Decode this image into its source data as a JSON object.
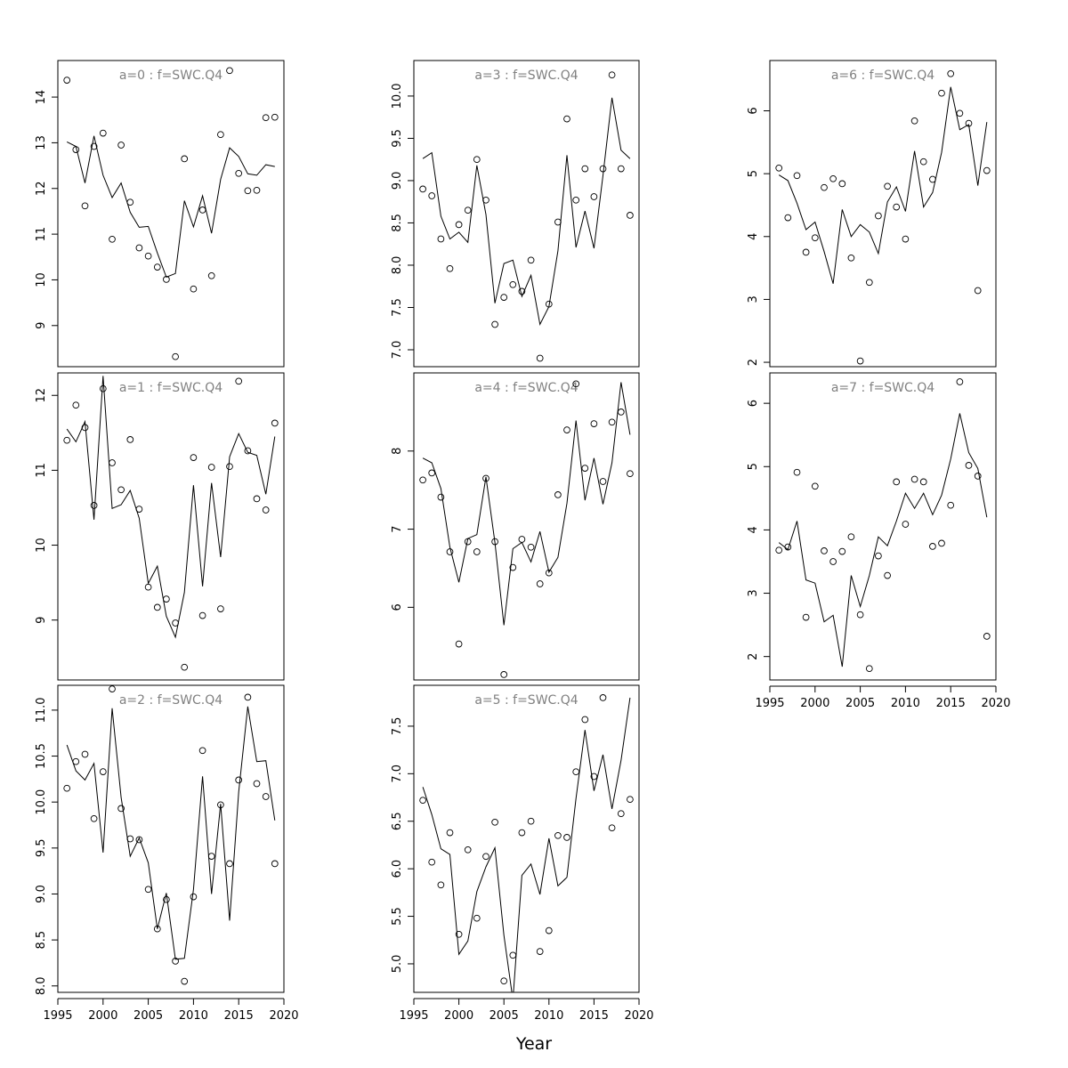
{
  "chart_data": {
    "type": "line",
    "xlabel": "Year",
    "x": [
      1996,
      1997,
      1998,
      1999,
      2000,
      2001,
      2002,
      2003,
      2004,
      2005,
      2006,
      2007,
      2008,
      2009,
      2010,
      2011,
      2012,
      2013,
      2014,
      2015,
      2016,
      2017,
      2018,
      2019
    ],
    "xlim": [
      1995,
      2020
    ],
    "xticks": [
      1995,
      2000,
      2005,
      2010,
      2015,
      2020
    ],
    "panels": [
      {
        "title": "a=0  :  f=SWC.Q4",
        "ylim": [
          8.1,
          14.8
        ],
        "yticks": [
          9,
          10,
          11,
          12,
          13,
          14
        ],
        "fitted": [
          13.02,
          12.92,
          12.12,
          13.15,
          12.29,
          11.8,
          12.12,
          11.48,
          11.15,
          11.17,
          10.59,
          10.06,
          10.14,
          11.73,
          11.16,
          11.84,
          11.02,
          12.2,
          12.89,
          12.7,
          12.32,
          12.29,
          12.52,
          12.48
        ],
        "observed": [
          14.37,
          12.85,
          11.62,
          12.92,
          13.21,
          10.89,
          12.95,
          11.7,
          10.7,
          10.52,
          10.28,
          10.01,
          8.32,
          12.65,
          9.8,
          11.53,
          10.09,
          13.18,
          14.58,
          12.33,
          11.95,
          11.96,
          13.55,
          13.56
        ]
      },
      {
        "title": "a=1  :  f=SWC.Q4",
        "ylim": [
          8.2,
          12.3
        ],
        "yticks": [
          9,
          10,
          11,
          12
        ],
        "fitted": [
          11.55,
          11.38,
          11.65,
          10.34,
          12.26,
          10.49,
          10.54,
          10.73,
          10.36,
          9.49,
          9.72,
          9.05,
          8.77,
          9.37,
          10.8,
          9.45,
          10.83,
          9.84,
          11.18,
          11.49,
          11.24,
          11.2,
          10.68,
          11.45
        ],
        "observed": [
          11.4,
          11.87,
          11.57,
          10.53,
          12.09,
          11.1,
          10.74,
          11.41,
          10.48,
          9.44,
          9.17,
          9.28,
          8.96,
          8.37,
          11.17,
          9.06,
          11.04,
          9.15,
          11.05,
          12.19,
          11.26,
          10.62,
          10.47,
          11.63
        ]
      },
      {
        "title": "a=2  :  f=SWC.Q4",
        "ylim": [
          7.93,
          11.27
        ],
        "yticks": [
          "8.0",
          "8.5",
          "9.0",
          "9.5",
          "10.0",
          "10.5",
          "11.0"
        ],
        "fitted": [
          10.62,
          10.34,
          10.24,
          10.42,
          9.45,
          11.02,
          10.05,
          9.41,
          9.61,
          9.34,
          8.62,
          9.01,
          8.29,
          8.3,
          9.05,
          10.28,
          9.0,
          9.98,
          8.71,
          10.11,
          11.04,
          10.44,
          10.45,
          9.8
        ],
        "observed": [
          10.15,
          10.44,
          10.52,
          9.82,
          10.33,
          11.23,
          9.93,
          9.6,
          9.59,
          9.05,
          8.62,
          8.94,
          8.27,
          8.05,
          8.97,
          10.56,
          9.41,
          9.97,
          9.33,
          10.24,
          11.14,
          10.2,
          10.06,
          9.33
        ]
      },
      {
        "title": "a=3  :  f=SWC.Q4",
        "ylim": [
          6.8,
          10.42
        ],
        "yticks": [
          "7.0",
          "7.5",
          "8.0",
          "8.5",
          "9.0",
          "9.5",
          "10.0"
        ],
        "fitted": [
          9.26,
          9.33,
          8.58,
          8.31,
          8.39,
          8.27,
          9.18,
          8.6,
          7.55,
          8.02,
          8.06,
          7.63,
          7.88,
          7.3,
          7.51,
          8.17,
          9.3,
          8.21,
          8.64,
          8.2,
          9.06,
          9.98,
          9.36,
          9.26
        ],
        "observed": [
          8.9,
          8.82,
          8.31,
          7.96,
          8.48,
          8.65,
          9.25,
          8.77,
          7.3,
          7.62,
          7.77,
          7.69,
          8.06,
          6.9,
          7.54,
          8.51,
          9.73,
          8.77,
          9.14,
          8.81,
          9.14,
          10.25,
          9.14,
          8.59
        ]
      },
      {
        "title": "a=4  :  f=SWC.Q4",
        "ylim": [
          5.07,
          9.0
        ],
        "yticks": [
          6,
          7,
          8
        ],
        "fitted": [
          7.91,
          7.85,
          7.52,
          6.77,
          6.32,
          6.88,
          6.93,
          7.67,
          6.83,
          5.77,
          6.75,
          6.83,
          6.58,
          6.97,
          6.45,
          6.64,
          7.33,
          8.39,
          7.37,
          7.91,
          7.32,
          7.85,
          8.88,
          8.21
        ],
        "observed": [
          7.63,
          7.72,
          7.41,
          6.71,
          5.53,
          6.84,
          6.71,
          7.65,
          6.84,
          5.14,
          6.51,
          6.87,
          6.77,
          6.3,
          6.44,
          7.44,
          8.27,
          8.86,
          7.78,
          8.35,
          7.61,
          8.37,
          8.5,
          7.71
        ]
      },
      {
        "title": "a=5  :  f=SWC.Q4",
        "ylim": [
          4.7,
          7.93
        ],
        "yticks": [
          "5.0",
          "5.5",
          "6.0",
          "6.5",
          "7.0",
          "7.5"
        ],
        "fitted": [
          6.86,
          6.57,
          6.21,
          6.15,
          5.1,
          5.24,
          5.76,
          6.02,
          6.22,
          5.3,
          4.62,
          5.93,
          6.05,
          5.73,
          6.32,
          5.82,
          5.91,
          6.74,
          7.46,
          6.82,
          7.2,
          6.63,
          7.14,
          7.8
        ],
        "observed": [
          6.72,
          6.07,
          5.83,
          6.38,
          5.31,
          6.2,
          5.48,
          6.13,
          6.49,
          4.82,
          5.09,
          6.38,
          6.5,
          5.13,
          5.35,
          6.35,
          6.33,
          7.02,
          7.57,
          6.97,
          7.8,
          6.43,
          6.58,
          6.73
        ]
      },
      {
        "title": "a=6  :  f=SWC.Q4",
        "ylim": [
          1.93,
          6.8
        ],
        "yticks": [
          2,
          3,
          4,
          5,
          6
        ],
        "fitted": [
          4.98,
          4.89,
          4.53,
          4.11,
          4.23,
          3.76,
          3.25,
          4.43,
          4.0,
          4.19,
          4.07,
          3.73,
          4.55,
          4.79,
          4.4,
          5.36,
          4.47,
          4.7,
          5.34,
          6.38,
          5.7,
          5.78,
          4.81,
          5.82
        ],
        "observed": [
          5.09,
          4.3,
          4.97,
          3.75,
          3.98,
          4.78,
          4.92,
          4.84,
          3.66,
          2.02,
          3.27,
          4.33,
          4.8,
          4.47,
          3.96,
          5.84,
          5.19,
          4.91,
          6.28,
          6.59,
          5.96,
          5.8,
          3.14,
          5.05
        ],
        "_note": ""
      },
      {
        "title": "a=7  :  f=SWC.Q4",
        "ylim": [
          1.63,
          6.48
        ],
        "yticks": [
          2,
          3,
          4,
          5,
          6
        ],
        "fitted": [
          3.8,
          3.69,
          4.14,
          3.21,
          3.16,
          2.55,
          2.65,
          1.84,
          3.28,
          2.79,
          3.28,
          3.89,
          3.75,
          4.14,
          4.58,
          4.34,
          4.58,
          4.24,
          4.55,
          5.12,
          5.84,
          5.22,
          4.97,
          4.2
        ],
        "observed": [
          3.68,
          3.73,
          4.91,
          2.62,
          4.69,
          3.67,
          3.5,
          3.66,
          3.89,
          2.66,
          1.81,
          3.59,
          3.28,
          4.76,
          4.09,
          4.8,
          4.76,
          3.74,
          3.79,
          4.39,
          6.34,
          5.02,
          4.85,
          2.32
        ]
      }
    ]
  }
}
